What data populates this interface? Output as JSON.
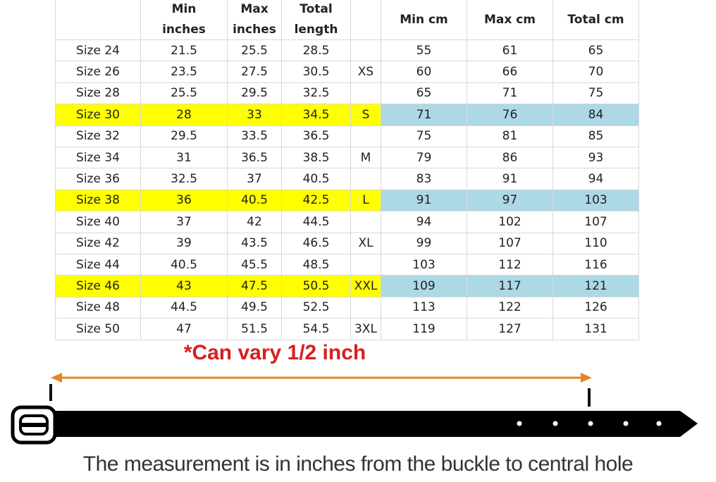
{
  "table": {
    "columns": [
      "size",
      "min_in",
      "max_in",
      "total_in",
      "letter",
      "min_cm",
      "max_cm",
      "total_cm"
    ],
    "headers": {
      "min_in": [
        "Min",
        "inches"
      ],
      "max_in": [
        "Max",
        "inches"
      ],
      "total_in": [
        "Total",
        "length"
      ],
      "min_cm": [
        "Min cm"
      ],
      "max_cm": [
        "Max cm"
      ],
      "total_cm": [
        "Total cm"
      ]
    },
    "rows": [
      {
        "size": "Size 24",
        "min_in": "21.5",
        "max_in": "25.5",
        "total_in": "28.5",
        "min_cm": "55",
        "max_cm": "61",
        "total_cm": "65"
      },
      {
        "size": "Size 26",
        "min_in": "23.5",
        "max_in": "27.5",
        "total_in": "30.5",
        "letter": "XS",
        "min_cm": "60",
        "max_cm": "66",
        "total_cm": "70"
      },
      {
        "size": "Size 28",
        "min_in": "25.5",
        "max_in": "29.5",
        "total_in": "32.5",
        "min_cm": "65",
        "max_cm": "71",
        "total_cm": "75"
      },
      {
        "size": "Size 30",
        "min_in": "28",
        "max_in": "33",
        "total_in": "34.5",
        "letter": "S",
        "min_cm": "71",
        "max_cm": "76",
        "total_cm": "84",
        "highlight": true
      },
      {
        "size": "Size 32",
        "min_in": "29.5",
        "max_in": "33.5",
        "total_in": "36.5",
        "min_cm": "75",
        "max_cm": "81",
        "total_cm": "85"
      },
      {
        "size": "Size 34",
        "min_in": "31",
        "max_in": "36.5",
        "total_in": "38.5",
        "letter": "M",
        "min_cm": "79",
        "max_cm": "86",
        "total_cm": "93"
      },
      {
        "size": "Size 36",
        "min_in": "32.5",
        "max_in": "37",
        "total_in": "40.5",
        "min_cm": "83",
        "max_cm": "91",
        "total_cm": "94"
      },
      {
        "size": "Size 38",
        "min_in": "36",
        "max_in": "40.5",
        "total_in": "42.5",
        "letter": "L",
        "min_cm": "91",
        "max_cm": "97",
        "total_cm": "103",
        "highlight": true
      },
      {
        "size": "Size 40",
        "min_in": "37",
        "max_in": "42",
        "total_in": "44.5",
        "min_cm": "94",
        "max_cm": "102",
        "total_cm": "107"
      },
      {
        "size": "Size 42",
        "min_in": "39",
        "max_in": "43.5",
        "total_in": "46.5",
        "letter": "XL",
        "min_cm": "99",
        "max_cm": "107",
        "total_cm": "110"
      },
      {
        "size": "Size 44",
        "min_in": "40.5",
        "max_in": "45.5",
        "total_in": "48.5",
        "min_cm": "103",
        "max_cm": "112",
        "total_cm": "116"
      },
      {
        "size": "Size 46",
        "min_in": "43",
        "max_in": "47.5",
        "total_in": "50.5",
        "letter": "XXL",
        "min_cm": "109",
        "max_cm": "117",
        "total_cm": "121",
        "highlight": true
      },
      {
        "size": "Size 48",
        "min_in": "44.5",
        "max_in": "49.5",
        "total_in": "52.5",
        "min_cm": "113",
        "max_cm": "122",
        "total_cm": "126"
      },
      {
        "size": "Size 50",
        "min_in": "47",
        "max_in": "51.5",
        "total_in": "54.5",
        "letter": "3XL",
        "min_cm": "119",
        "max_cm": "127",
        "total_cm": "131"
      }
    ]
  },
  "note": "*Can vary 1/2 inch",
  "caption": "The measurement is in inches from the buckle to central hole"
}
